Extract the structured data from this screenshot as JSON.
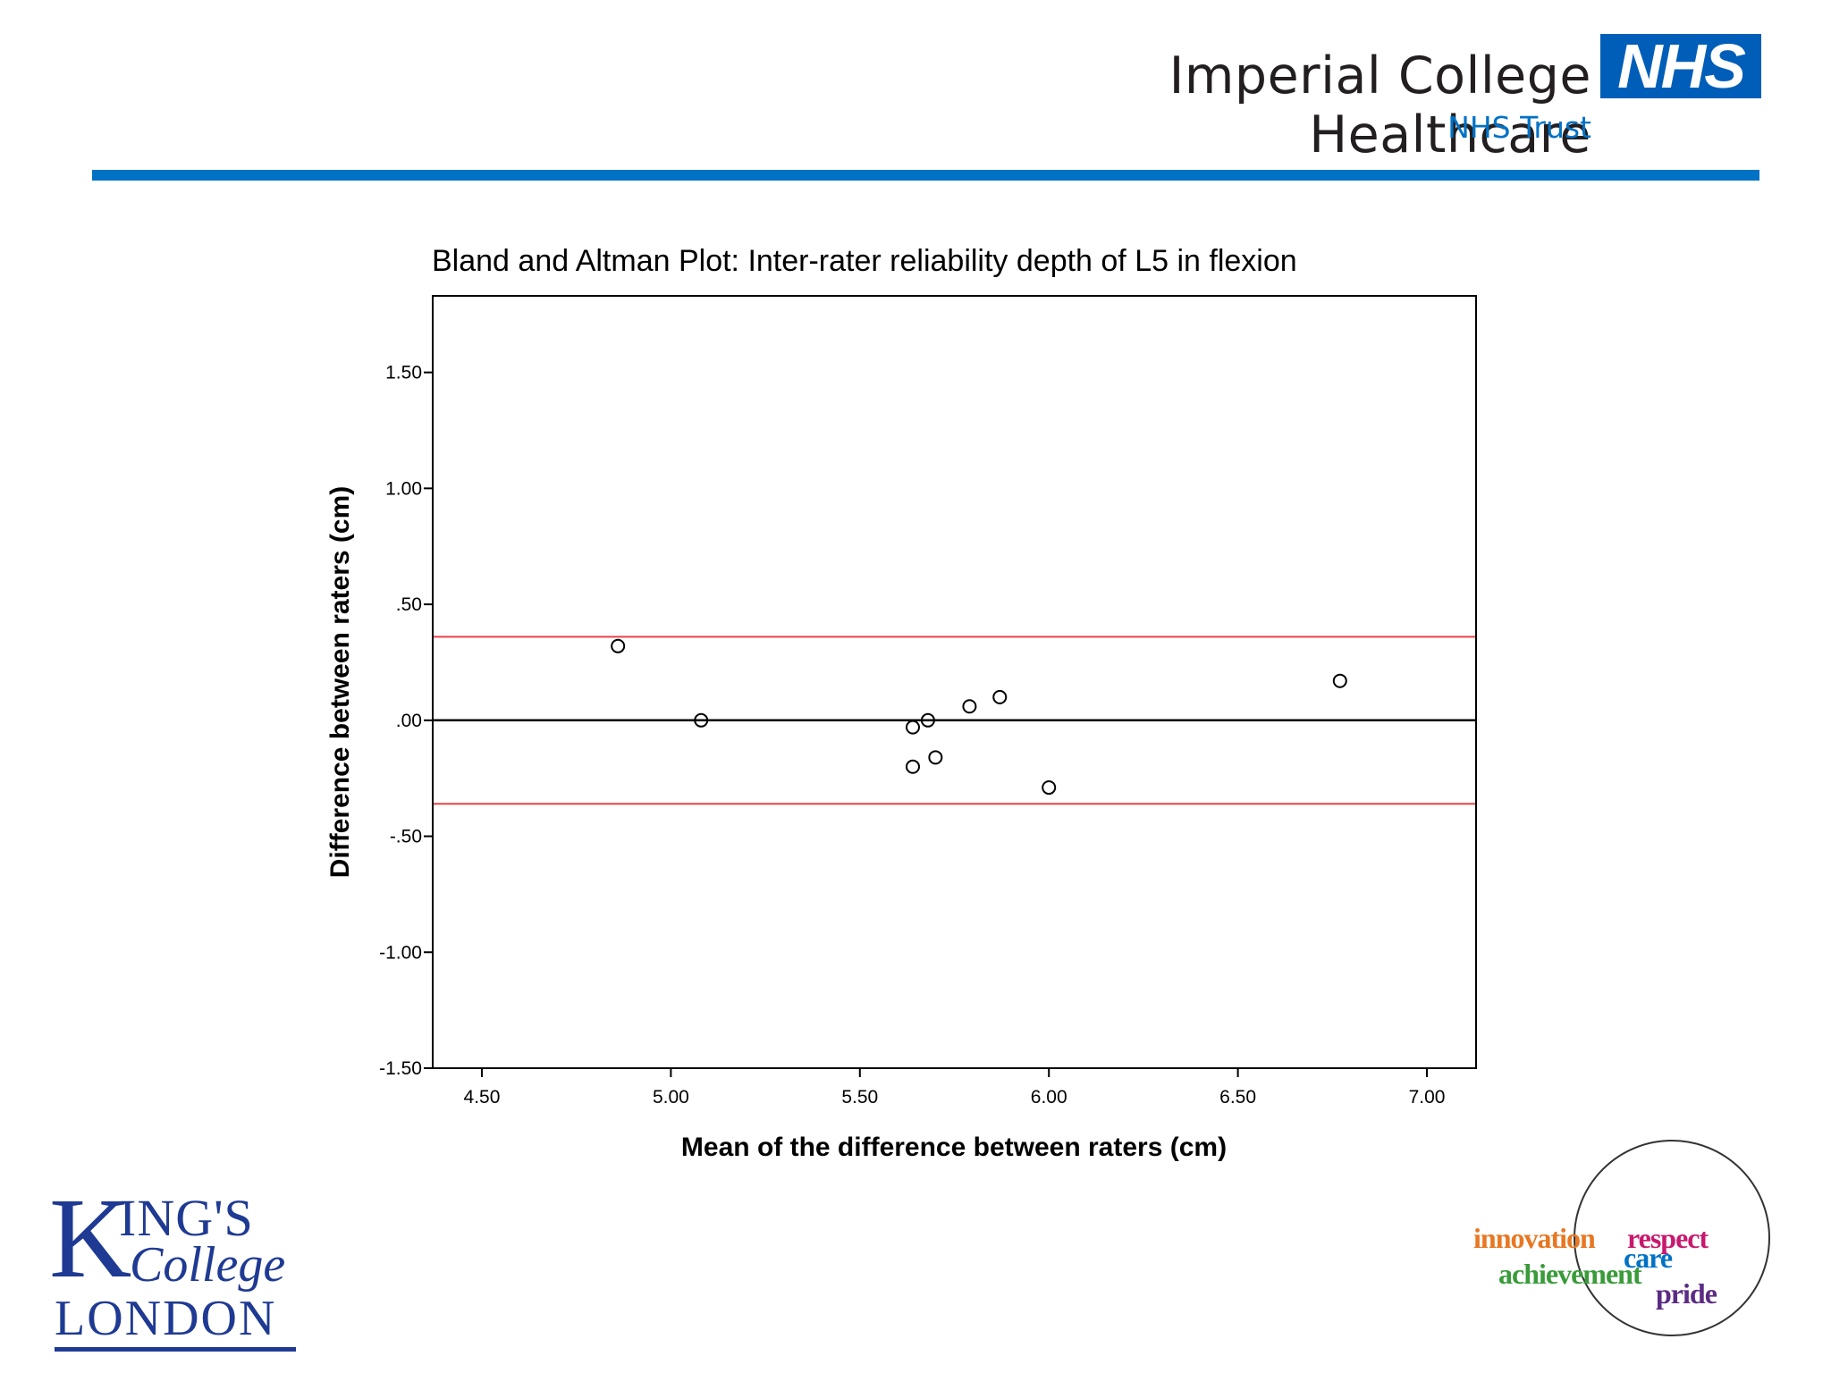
{
  "header": {
    "org_name": "Imperial College Healthcare",
    "nhs_badge": "NHS",
    "trust_label": "NHS Trust",
    "brand_color": "#005eb8"
  },
  "chart_data": {
    "type": "scatter",
    "title": "Bland and Altman Plot: Inter-rater reliability depth of L5 in flexion",
    "xlabel": "Mean of the difference between raters (cm)",
    "ylabel": "Difference between raters (cm)",
    "xlim": [
      4.37,
      7.13
    ],
    "ylim": [
      -1.5,
      1.83
    ],
    "x_ticks": [
      4.5,
      5.0,
      5.5,
      6.0,
      6.5,
      7.0
    ],
    "x_tick_labels": [
      "4.50",
      "5.00",
      "5.50",
      "6.00",
      "6.50",
      "7.00"
    ],
    "y_ticks": [
      1.5,
      1.0,
      0.5,
      0.0,
      -0.5,
      -1.0,
      -1.5
    ],
    "y_tick_labels": [
      "1.50",
      "1.00",
      ".50",
      ".00",
      "-.50",
      "-1.00",
      "-1.50"
    ],
    "points": [
      {
        "x": 4.86,
        "y": 0.32
      },
      {
        "x": 5.08,
        "y": 0.0
      },
      {
        "x": 5.64,
        "y": -0.03
      },
      {
        "x": 5.68,
        "y": 0.0
      },
      {
        "x": 5.64,
        "y": -0.2
      },
      {
        "x": 5.7,
        "y": -0.16
      },
      {
        "x": 5.79,
        "y": 0.06
      },
      {
        "x": 5.87,
        "y": 0.1
      },
      {
        "x": 6.0,
        "y": -0.29
      },
      {
        "x": 6.77,
        "y": 0.17
      }
    ],
    "reference_lines": [
      {
        "name": "upper-limit-of-agreement",
        "y": 0.36,
        "color": "#e8424a"
      },
      {
        "name": "mean-difference",
        "y": 0.0,
        "color": "#000000"
      },
      {
        "name": "lower-limit-of-agreement",
        "y": -0.36,
        "color": "#e8424a"
      }
    ]
  },
  "footer": {
    "kings_k": "K",
    "kings_ings": "ING'S",
    "kings_college": "College",
    "kings_london": "LONDON",
    "values": {
      "innovation": "innovation",
      "respect": "respect",
      "care": "care",
      "achievement": "achievement",
      "pride": "pride"
    }
  }
}
